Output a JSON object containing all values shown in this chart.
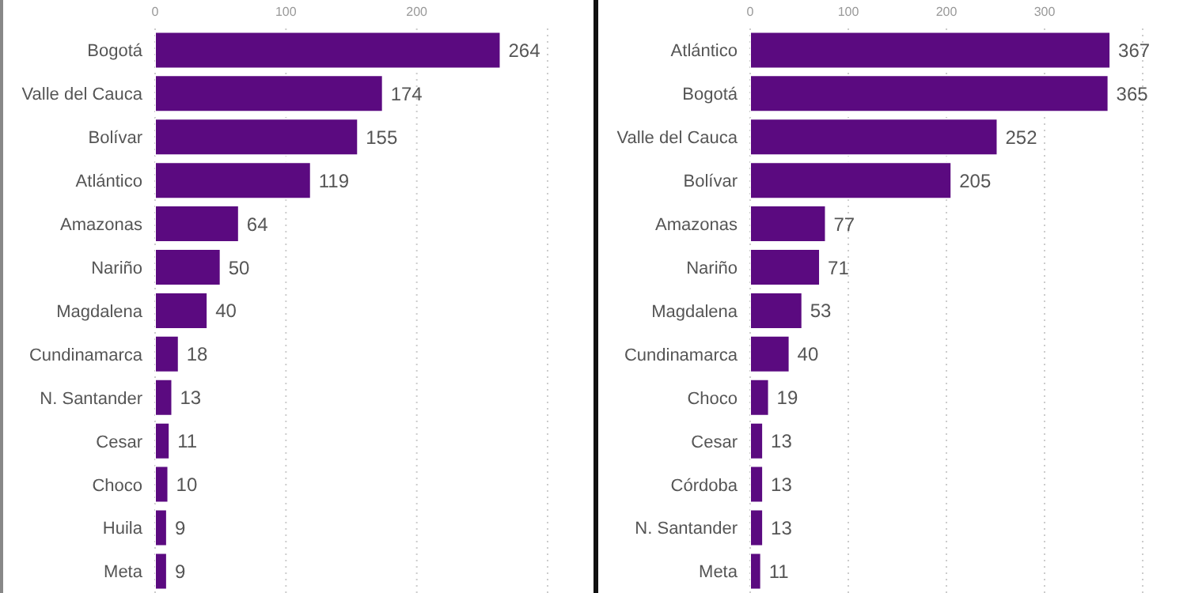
{
  "chart_data": [
    {
      "type": "bar",
      "orientation": "horizontal",
      "categories": [
        "Bogotá",
        "Valle del Cauca",
        "Bolívar",
        "Atlántico",
        "Amazonas",
        "Nariño",
        "Magdalena",
        "Cundinamarca",
        "N. Santander",
        "Cesar",
        "Choco",
        "Huila",
        "Meta"
      ],
      "values": [
        264,
        174,
        155,
        119,
        64,
        50,
        40,
        18,
        13,
        11,
        10,
        9,
        9
      ],
      "color": "#5b0a80",
      "xlim": [
        0,
        300
      ],
      "xticks": [
        0,
        100,
        200
      ],
      "grid": "x",
      "data_labels": true
    },
    {
      "type": "bar",
      "orientation": "horizontal",
      "categories": [
        "Atlántico",
        "Bogotá",
        "Valle del Cauca",
        "Bolívar",
        "Amazonas",
        "Nariño",
        "Magdalena",
        "Cundinamarca",
        "Choco",
        "Cesar",
        "Córdoba",
        "N. Santander",
        "Meta"
      ],
      "values": [
        367,
        365,
        252,
        205,
        77,
        71,
        53,
        40,
        19,
        13,
        13,
        13,
        11
      ],
      "color": "#5b0a80",
      "xlim": [
        0,
        400
      ],
      "xticks": [
        0,
        100,
        200,
        300
      ],
      "grid": "x",
      "data_labels": true
    }
  ]
}
